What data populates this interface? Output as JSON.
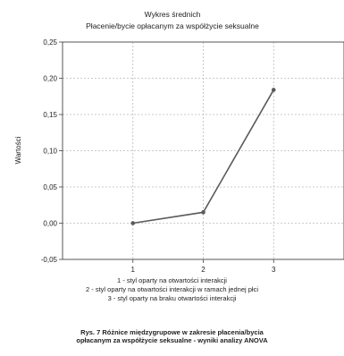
{
  "chart_data": {
    "type": "line",
    "title": "Wykres średnich",
    "subtitle": "Płacenie/bycie opłacanym za współżycie seksualne",
    "ylabel": "Wartości",
    "categories": [
      "1",
      "2",
      "3"
    ],
    "values": [
      0.0,
      0.015,
      0.184
    ],
    "ylim": [
      -0.05,
      0.25
    ],
    "yticks": [
      -0.05,
      0.0,
      0.05,
      0.1,
      0.15,
      0.2,
      0.25
    ],
    "ytick_labels": [
      "-0,05",
      "0,00",
      "0,05",
      "0,10",
      "0,15",
      "0,20",
      "0,25"
    ],
    "grid": true,
    "line_color": "#5a5a5a",
    "grid_color": "#bbbbbb"
  },
  "legend_lines": [
    "1 - styl oparty na otwartości interakcji",
    "2 - styl oparty na otwartości interakcji w ramach jednej płci",
    "3 - styl oparty na braku otwartości interakcji"
  ],
  "caption": {
    "line1": "Rys. 7 Różnice międzygrupowe w zakresie płacenia/bycia",
    "line2": "opłacanym za współżycie seksualne - wyniki analizy ANOVA"
  }
}
